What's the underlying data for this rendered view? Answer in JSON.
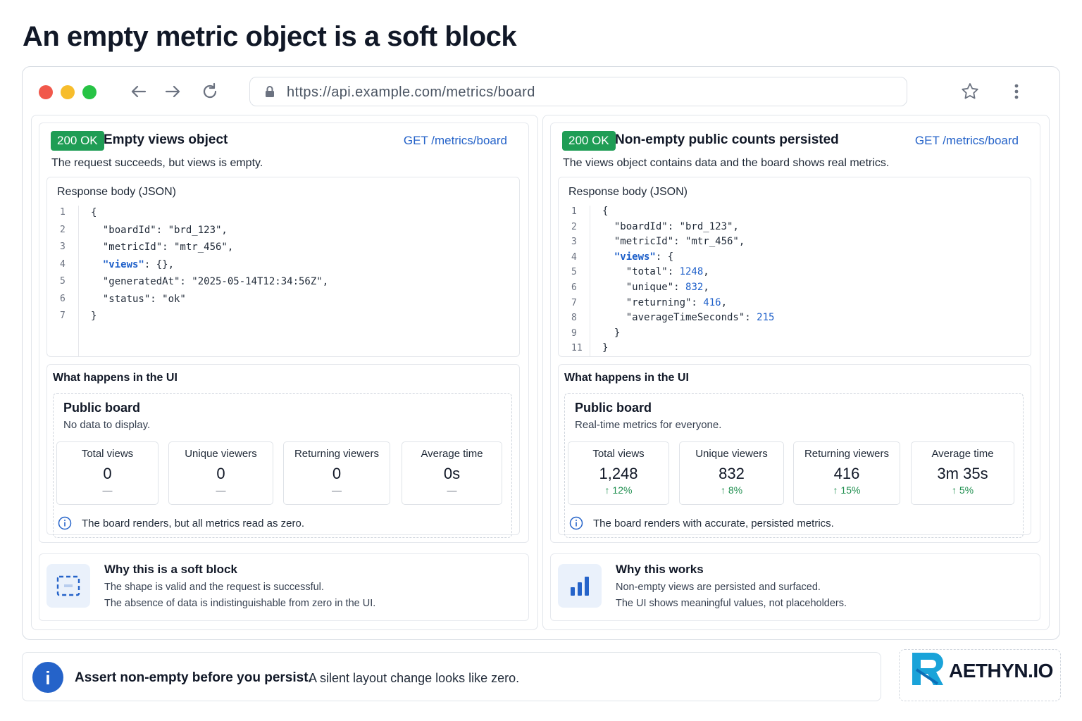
{
  "page": {
    "title": "An empty metric object is a soft block"
  },
  "browser": {
    "url": "https://api.example.com/metrics/board"
  },
  "left": {
    "badge": "200 OK",
    "title": "Empty views object",
    "endpoint": "GET /metrics/board",
    "desc": "The request succeeds, but views is empty.",
    "code_label": "Response body (JSON)",
    "code": [
      {
        "n": "1",
        "text": "{"
      },
      {
        "n": "2",
        "text": "  \"boardId\": \"brd_123\","
      },
      {
        "n": "3",
        "text": "  \"metricId\": \"mtr_456\","
      },
      {
        "n": "4",
        "key": "  \"views\"",
        "rest": ": {},"
      },
      {
        "n": "5",
        "text": "  \"generatedAt\": \"2025-05-14T12:34:56Z\","
      },
      {
        "n": "6",
        "text": "  \"status\": \"ok\""
      },
      {
        "n": "7",
        "text": "}"
      }
    ],
    "ui_label": "What happens in the UI",
    "board_title": "Public board",
    "board_sub": "No data to display.",
    "metrics": [
      {
        "label": "Total views",
        "value": "0",
        "delta": "—"
      },
      {
        "label": "Unique viewers",
        "value": "0",
        "delta": "—"
      },
      {
        "label": "Returning viewers",
        "value": "0",
        "delta": "—"
      },
      {
        "label": "Average time",
        "value": "0s",
        "delta": "—"
      }
    ],
    "board_note": "The board renders, but all metrics read as zero.",
    "why_title": "Why this is a soft block",
    "why_l1": "The shape is valid and the request is successful.",
    "why_l2": "The absence of data is indistinguishable from zero in the UI."
  },
  "right": {
    "badge": "200 OK",
    "title": "Non-empty public counts persisted",
    "endpoint": "GET /metrics/board",
    "desc": "The views object contains data and the board shows real metrics.",
    "code_label": "Response body (JSON)",
    "code": [
      {
        "n": "1",
        "text": "{"
      },
      {
        "n": "2",
        "text": "  \"boardId\": \"brd_123\","
      },
      {
        "n": "3",
        "text": "  \"metricId\": \"mtr_456\","
      },
      {
        "n": "4",
        "key": "  \"views\"",
        "rest": ": {"
      },
      {
        "n": "5",
        "pre": "    \"total\": ",
        "num": "1248",
        "post": ","
      },
      {
        "n": "6",
        "pre": "    \"unique\": ",
        "num": "832",
        "post": ","
      },
      {
        "n": "7",
        "pre": "    \"returning\": ",
        "num": "416",
        "post": ","
      },
      {
        "n": "8",
        "pre": "    \"averageTimeSeconds\": ",
        "num": "215",
        "post": ""
      },
      {
        "n": "9",
        "text": "  }"
      },
      {
        "n": "11",
        "text": "}"
      }
    ],
    "ui_label": "What happens in the UI",
    "board_title": "Public board",
    "board_sub": "Real-time metrics for everyone.",
    "metrics": [
      {
        "label": "Total views",
        "value": "1,248",
        "delta": "↑ 12%"
      },
      {
        "label": "Unique viewers",
        "value": "832",
        "delta": "↑ 8%"
      },
      {
        "label": "Returning viewers",
        "value": "416",
        "delta": "↑ 15%"
      },
      {
        "label": "Average time",
        "value": "3m 35s",
        "delta": "↑ 5%"
      }
    ],
    "board_note": "The board renders with accurate, persisted metrics.",
    "why_title": "Why this works",
    "why_l1": "Non-empty views are persisted and surfaced.",
    "why_l2": "The UI shows meaningful values, not placeholders."
  },
  "footer": {
    "strong": "Assert non-empty before you persist.",
    "rest": "A silent layout change looks like zero."
  },
  "logo": {
    "text": "AETHYN.IO"
  },
  "colors": {
    "ok_green": "#1f9d55",
    "link_blue": "#2563c9",
    "dot_red": "#f1584b",
    "dot_yellow": "#f7bd2c",
    "dot_green": "#27c345"
  },
  "icons": [
    "back-arrow-icon",
    "forward-arrow-icon",
    "reload-icon",
    "lock-icon",
    "star-icon",
    "kebab-menu-icon",
    "info-icon",
    "dashed-frame-icon",
    "bar-chart-icon"
  ]
}
